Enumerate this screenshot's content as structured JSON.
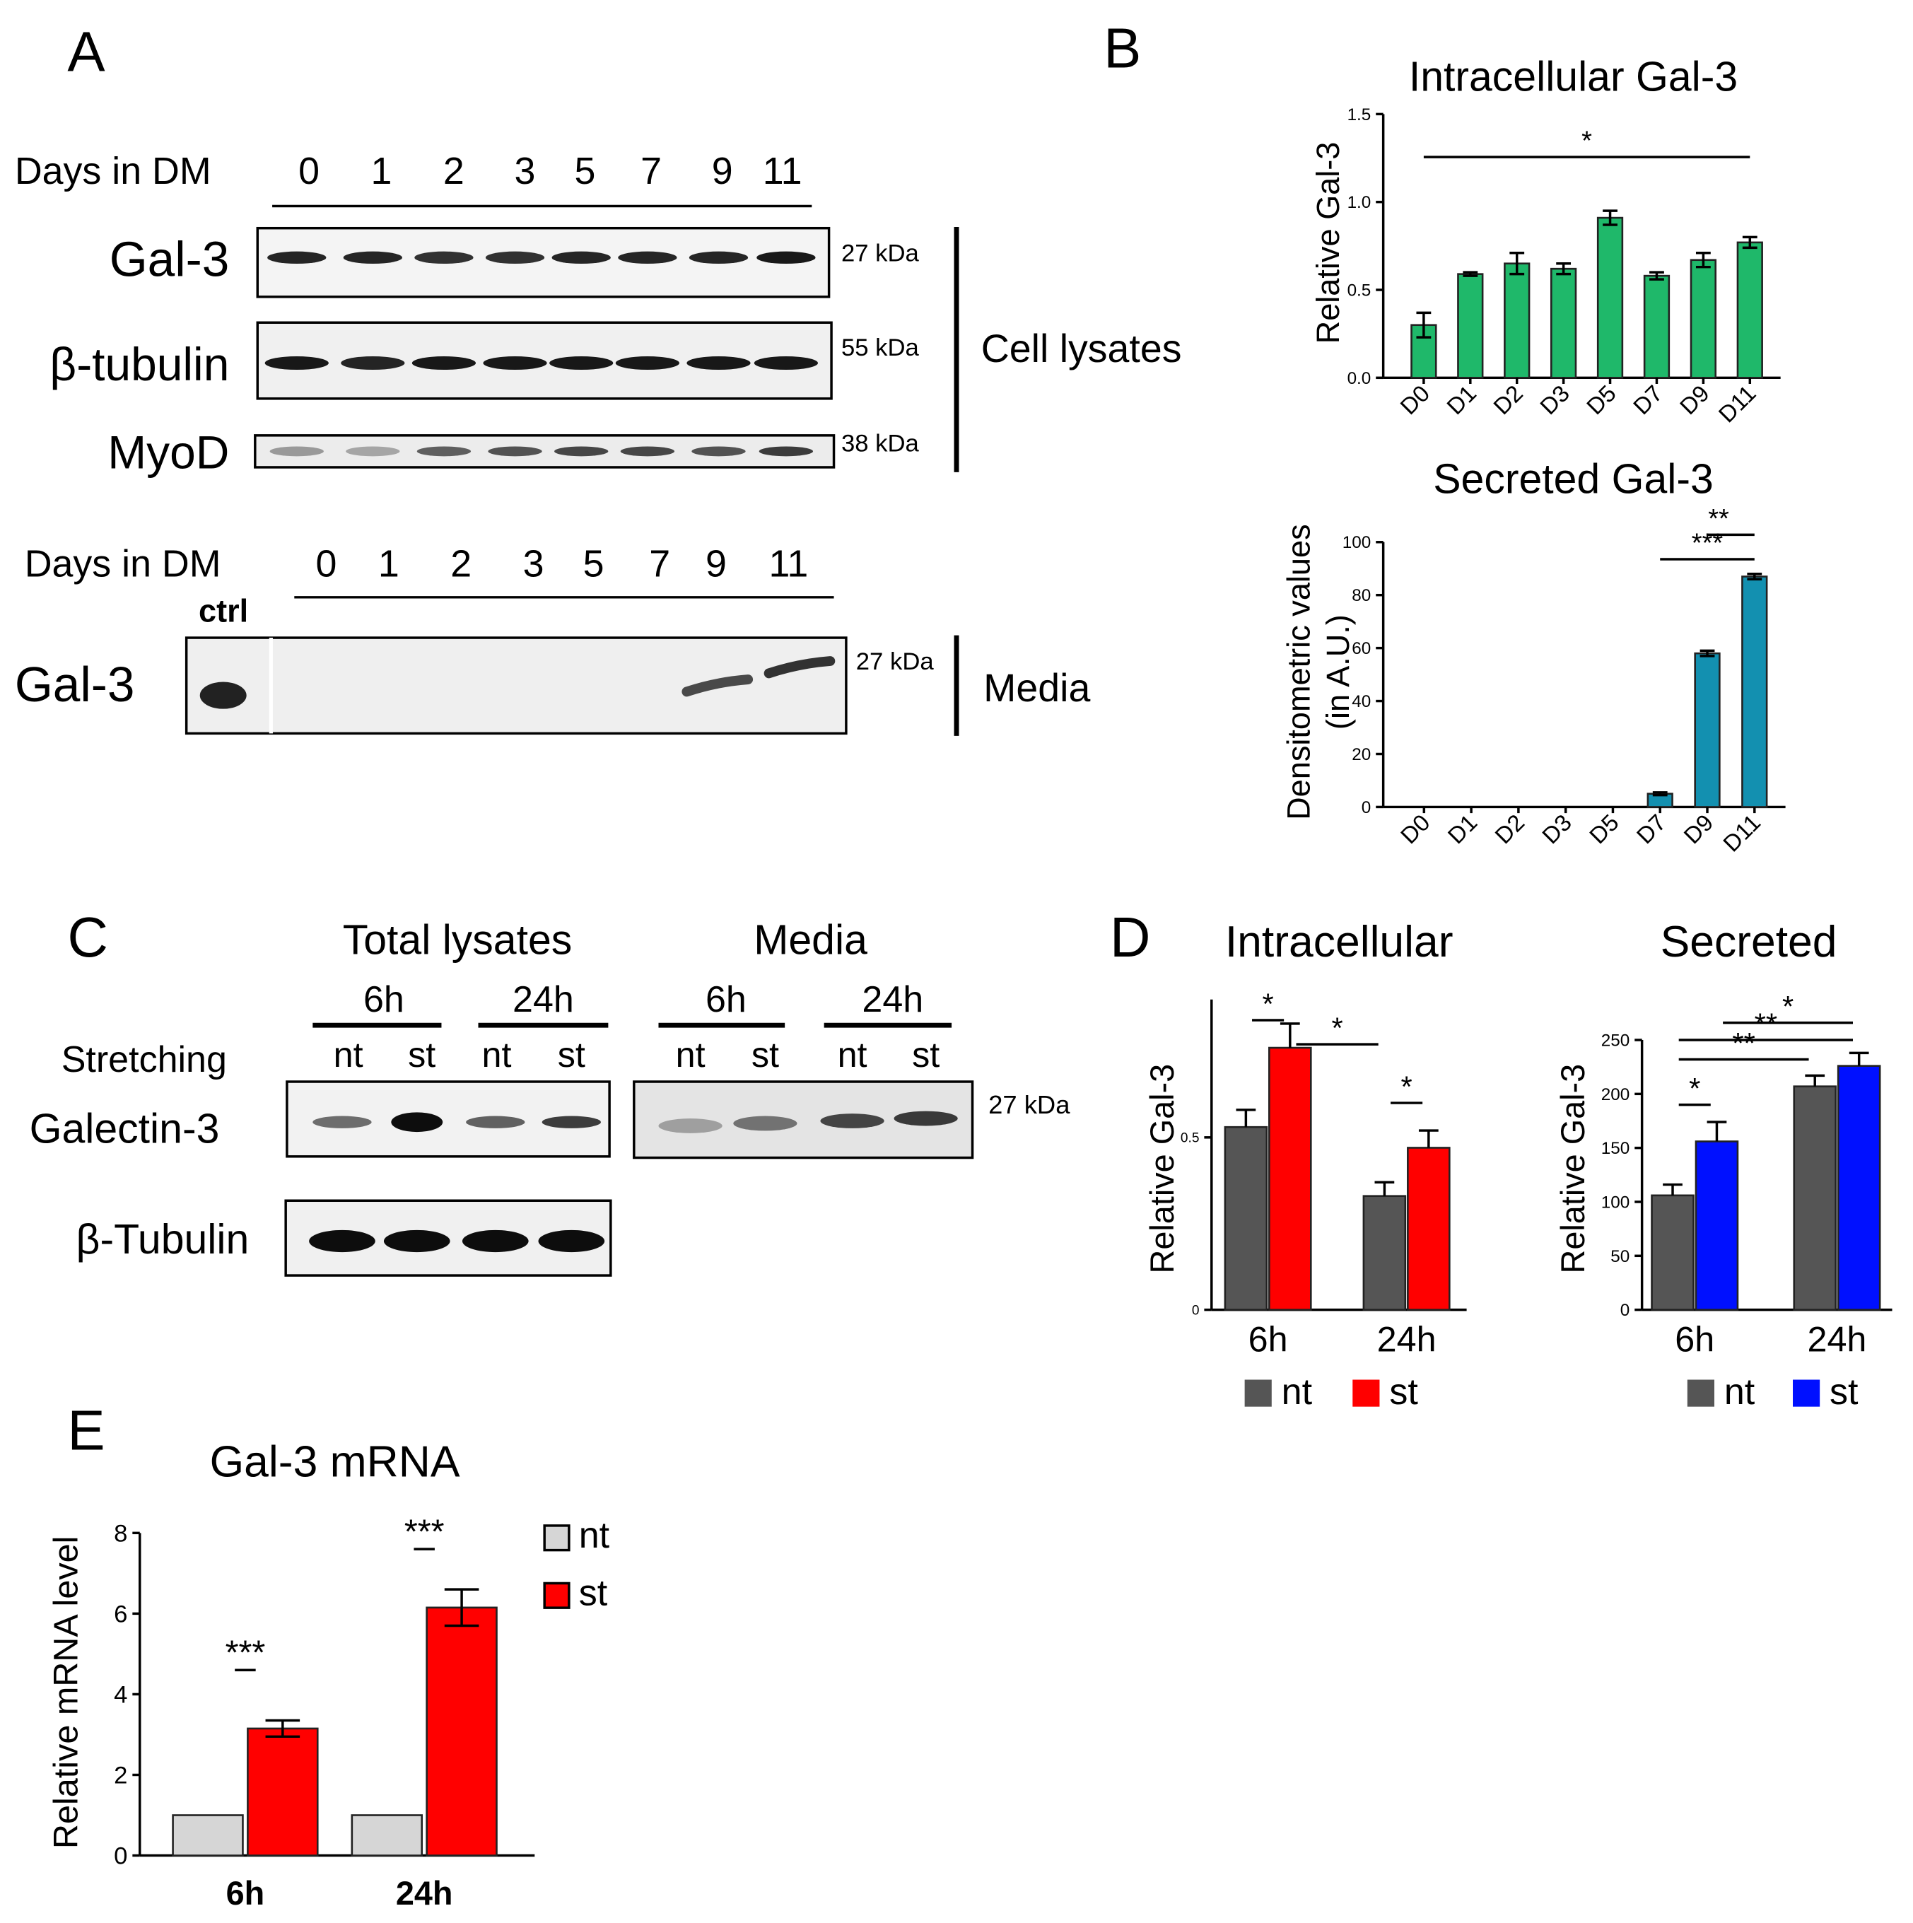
{
  "panels": {
    "A": {
      "label": "A",
      "days_label": "Days in DM",
      "days": [
        "0",
        "1",
        "2",
        "3",
        "5",
        "7",
        "9",
        "11"
      ],
      "rows": [
        {
          "name": "Gal-3",
          "kda": "27 kDa"
        },
        {
          "name": "β-tubulin",
          "kda": "55 kDa"
        },
        {
          "name": "MyoD",
          "kda": "38 kDa"
        }
      ],
      "bracket_label": "Cell lysates",
      "media_days_label": "Days in DM",
      "media_days": [
        "0",
        "1",
        "2",
        "3",
        "5",
        "7",
        "9",
        "11"
      ],
      "ctrl": "ctrl",
      "media_row": "Gal-3",
      "media_kda": "27 kDa",
      "media_bracket": "Media",
      "band_intensity": {
        "gal3": [
          0.85,
          0.85,
          0.8,
          0.8,
          0.85,
          0.85,
          0.85,
          0.9
        ],
        "tubulin": [
          0.9,
          0.85,
          0.9,
          0.9,
          0.9,
          0.9,
          0.9,
          0.9
        ],
        "myod": [
          0.35,
          0.3,
          0.6,
          0.65,
          0.7,
          0.7,
          0.65,
          0.75
        ],
        "media": [
          0,
          0,
          0,
          0,
          0,
          0,
          0.75,
          0.85
        ]
      }
    },
    "C": {
      "label": "C",
      "group_titles": [
        "Total lysates",
        "Media"
      ],
      "times": [
        "6h",
        "24h",
        "6h",
        "24h"
      ],
      "stretch_label": "Stretching",
      "conditions": [
        "nt",
        "st",
        "nt",
        "st",
        "nt",
        "st",
        "nt",
        "st"
      ],
      "rows": [
        "Galectin-3",
        "β-Tubulin"
      ],
      "kda": "27 kDa",
      "band_intensity": {
        "lysate_gal3": [
          0.55,
          0.95,
          0.6,
          0.75
        ],
        "tubulin": [
          0.95,
          0.95,
          0.95,
          0.95
        ],
        "media_gal3": [
          0.3,
          0.5,
          0.7,
          0.75
        ]
      }
    },
    "B_label": "B",
    "D_label": "D",
    "D_title": "Intracellular",
    "D2_title": "Secreted",
    "E_label": "E"
  },
  "colors": {
    "green": "#1fb86a",
    "teal": "#1390b0",
    "gray": "#555555",
    "red": "#ff0000",
    "blue": "#0010ff",
    "lightgray": "#d6d6d6"
  },
  "chart_data": [
    {
      "id": "B1",
      "type": "bar",
      "title": "Intracellular Gal-3",
      "ylabel": "Relative Gal-3",
      "categories": [
        "D0",
        "D1",
        "D2",
        "D3",
        "D5",
        "D7",
        "D9",
        "D11"
      ],
      "values": [
        0.3,
        0.59,
        0.65,
        0.62,
        0.91,
        0.58,
        0.67,
        0.77
      ],
      "errors": [
        0.07,
        0.01,
        0.06,
        0.03,
        0.04,
        0.02,
        0.04,
        0.03
      ],
      "ylim": [
        0,
        1.5
      ],
      "yticks": [
        "0.0",
        "0.5",
        "1.0",
        "1.5"
      ],
      "sig": [
        {
          "from": 0,
          "to": 7,
          "label": "*"
        }
      ]
    },
    {
      "id": "B2",
      "type": "bar",
      "title": "Secreted Gal-3",
      "ylabel": "Densitometric values",
      "ylabel2": "(in A.U.)",
      "categories": [
        "D0",
        "D1",
        "D2",
        "D3",
        "D5",
        "D7",
        "D9",
        "D11"
      ],
      "values": [
        0,
        0,
        0,
        0,
        0,
        5,
        58,
        87
      ],
      "errors": [
        0,
        0,
        0,
        0,
        0,
        0.5,
        1,
        1
      ],
      "ylim": [
        0,
        100
      ],
      "yticks": [
        "0",
        "20",
        "40",
        "60",
        "80",
        "100"
      ],
      "sig": [
        {
          "from": 5,
          "to": 7,
          "label": "***",
          "level": 0
        },
        {
          "from": 6,
          "to": 7,
          "label": "**",
          "level": 1
        }
      ]
    },
    {
      "id": "D1",
      "type": "bar",
      "title": "Intracellular",
      "ylabel": "Relative Gal-3",
      "categories": [
        "6h",
        "24h"
      ],
      "series": [
        {
          "name": "nt",
          "values": [
            0.53,
            0.33
          ],
          "errors": [
            0.05,
            0.04
          ]
        },
        {
          "name": "st",
          "values": [
            0.76,
            0.47
          ],
          "errors": [
            0.07,
            0.05
          ]
        }
      ],
      "ylim": [
        0,
        0.9
      ],
      "yticks": [
        "0",
        "0.5"
      ],
      "tick_values": [
        0,
        0.5
      ],
      "sig": [
        {
          "a": [
            0,
            0
          ],
          "b": [
            0,
            1
          ],
          "label": "*",
          "y": 0.84
        },
        {
          "a": [
            0,
            1
          ],
          "b": [
            1,
            0
          ],
          "label": "*",
          "y": 0.77
        },
        {
          "a": [
            1,
            0
          ],
          "b": [
            1,
            1
          ],
          "label": "*",
          "y": 0.6
        }
      ],
      "legend": [
        "nt",
        "st"
      ]
    },
    {
      "id": "D2",
      "type": "bar",
      "title": "Secreted",
      "ylabel": "Relative Gal-3",
      "categories": [
        "6h",
        "24h"
      ],
      "series": [
        {
          "name": "nt",
          "values": [
            106,
            207
          ],
          "errors": [
            10,
            10
          ]
        },
        {
          "name": "st",
          "values": [
            156,
            226
          ],
          "errors": [
            18,
            12
          ]
        }
      ],
      "ylim": [
        0,
        250
      ],
      "yticks": [
        "0",
        "50",
        "100",
        "150",
        "200",
        "250"
      ],
      "tick_values": [
        0,
        50,
        100,
        150,
        200,
        250
      ],
      "sig": [
        {
          "a": [
            0,
            0
          ],
          "b": [
            0,
            1
          ],
          "label": "*",
          "y": 190
        },
        {
          "a": [
            0,
            0
          ],
          "b": [
            1,
            0
          ],
          "label": "**",
          "y": 232
        },
        {
          "a": [
            0,
            0
          ],
          "b": [
            1,
            1
          ],
          "label": "**",
          "y": 250
        },
        {
          "a": [
            0,
            1
          ],
          "b": [
            1,
            1
          ],
          "label": "*",
          "y": 266
        }
      ],
      "legend": [
        "nt",
        "st"
      ]
    },
    {
      "id": "E",
      "type": "bar",
      "title": "Gal-3 mRNA",
      "ylabel": "Relative mRNA level",
      "categories": [
        "6h",
        "24h"
      ],
      "series": [
        {
          "name": "nt",
          "values": [
            1,
            1
          ],
          "errors": [
            0,
            0
          ]
        },
        {
          "name": "st",
          "values": [
            3.15,
            6.15
          ],
          "errors": [
            0.2,
            0.45
          ]
        }
      ],
      "ylim": [
        0,
        8
      ],
      "yticks": [
        "0",
        "2",
        "4",
        "6",
        "8"
      ],
      "tick_values": [
        0,
        2,
        4,
        6,
        8
      ],
      "sig": [
        {
          "a": [
            0,
            0
          ],
          "b": [
            0,
            1
          ],
          "label": "***",
          "y": 4.6
        },
        {
          "a": [
            1,
            0
          ],
          "b": [
            1,
            1
          ],
          "label": "***",
          "y": 7.6
        }
      ],
      "legend": [
        "nt",
        "st"
      ]
    }
  ]
}
